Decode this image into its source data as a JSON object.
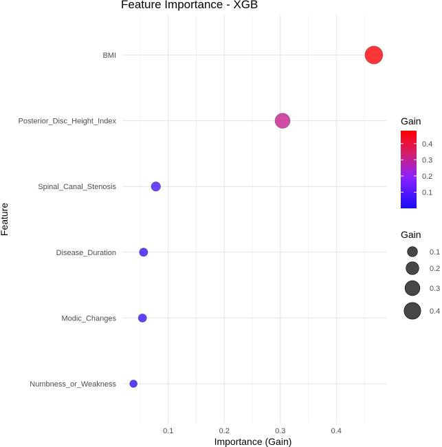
{
  "chart_data": {
    "type": "scatter",
    "title": "Feature Importance - XGB",
    "xlabel": "Importance (Gain)",
    "ylabel": "Feature",
    "xlim": [
      0,
      0.48
    ],
    "xticks": [
      "0.1",
      "0.2",
      "0.3",
      "0.4"
    ],
    "xtick_values": [
      0.1,
      0.2,
      0.3,
      0.4
    ],
    "grid": true,
    "categories": [
      "BMI",
      "Posterior_Disc_Height_Index",
      "Spinal_Canal_Stenosis",
      "Disease_Duration",
      "Modic_Changes",
      "Numbness_or_Weakness"
    ],
    "values": [
      0.467,
      0.304,
      0.078,
      0.056,
      0.054,
      0.038
    ],
    "color_scale": {
      "low": "#0000ff",
      "mid": "#9b30ff",
      "high": "#ff0000",
      "min": 0.0,
      "max": 0.48
    },
    "legend_color": {
      "title": "Gain",
      "labels": [
        "0.4",
        "0.3",
        "0.2",
        "0.1"
      ],
      "values": [
        0.4,
        0.3,
        0.2,
        0.1
      ]
    },
    "legend_size": {
      "title": "Gain",
      "labels": [
        "0.1",
        "0.2",
        "0.3",
        "0.4"
      ],
      "values": [
        0.1,
        0.2,
        0.3,
        0.4
      ]
    },
    "legend_position": "right"
  }
}
